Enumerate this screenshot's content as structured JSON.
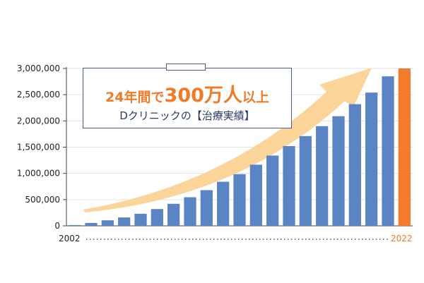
{
  "chart_data": {
    "type": "bar",
    "x_start_label": "2002",
    "x_end_label": "2022",
    "values": [
      15000,
      55000,
      105000,
      160000,
      230000,
      320000,
      420000,
      545000,
      680000,
      840000,
      985000,
      1165000,
      1340000,
      1520000,
      1710000,
      1900000,
      2090000,
      2320000,
      2540000,
      2850000,
      3000000
    ],
    "highlight_last": true,
    "yticks": [
      "0",
      "500,000",
      "1,000,000",
      "1,500,000",
      "2,000,000",
      "2,500,000",
      "3,000,000"
    ],
    "ylim": [
      0,
      3000000
    ],
    "colors": {
      "bar": "#5b84c4",
      "highlight": "#f47a2c",
      "arrow": "#fbd49a"
    }
  },
  "callout": {
    "headline_pre": "24年間で",
    "headline_big": "300万人",
    "headline_post": "以上",
    "subline": "Dクリニックの【治療実績】"
  }
}
